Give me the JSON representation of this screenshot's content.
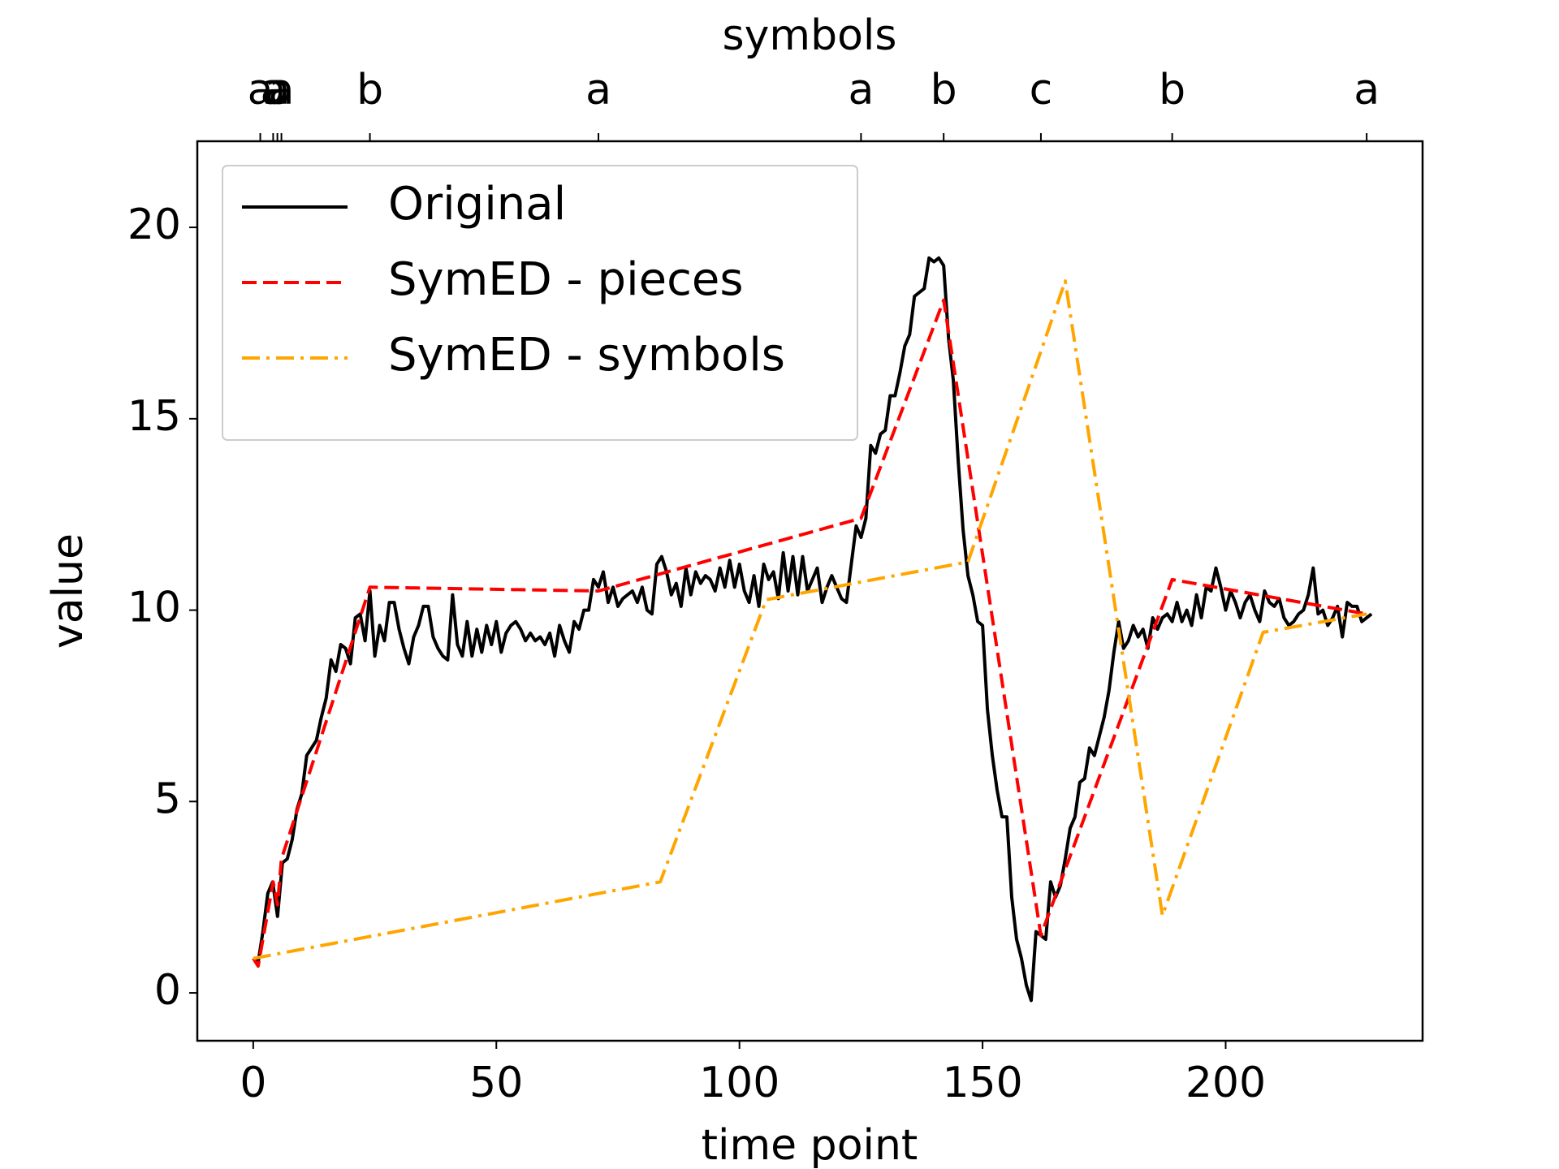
{
  "chart_data": {
    "type": "line",
    "xlabel": "time point",
    "ylabel": "value",
    "x2label": "symbols",
    "xlim": [
      -11.5,
      240.5
    ],
    "ylim": [
      -1.25,
      22.25
    ],
    "xticks": [
      0,
      50,
      100,
      150,
      200
    ],
    "yticks": [
      0,
      5,
      10,
      15,
      20
    ],
    "x2ticks": [
      {
        "value": 1.45,
        "label": "a"
      },
      {
        "value": 4.1,
        "label": "a"
      },
      {
        "value": 4.97,
        "label": "a"
      },
      {
        "value": 5.8,
        "label": "a"
      },
      {
        "value": 24,
        "label": "b"
      },
      {
        "value": 71,
        "label": "a"
      },
      {
        "value": 125,
        "label": "a"
      },
      {
        "value": 142,
        "label": "b"
      },
      {
        "value": 162,
        "label": "c"
      },
      {
        "value": 189,
        "label": "b"
      },
      {
        "value": 229,
        "label": "a"
      }
    ],
    "grid": false,
    "legend": "upper left",
    "series": [
      {
        "name": "Original",
        "color": "#000000",
        "linestyle": "solid",
        "x": [
          0,
          1,
          2,
          3,
          4,
          5,
          6,
          7,
          8,
          9,
          10,
          11,
          12,
          13,
          14,
          15,
          16,
          17,
          18,
          19,
          20,
          21,
          22,
          23,
          24,
          25,
          26,
          27,
          28,
          29,
          30,
          31,
          32,
          33,
          34,
          35,
          36,
          37,
          38,
          39,
          40,
          41,
          42,
          43,
          44,
          45,
          46,
          47,
          48,
          49,
          50,
          51,
          52,
          53,
          54,
          55,
          56,
          57,
          58,
          59,
          60,
          61,
          62,
          63,
          64,
          65,
          66,
          67,
          68,
          69,
          70,
          71,
          72,
          73,
          74,
          75,
          76,
          77,
          78,
          79,
          80,
          81,
          82,
          83,
          84,
          85,
          86,
          87,
          88,
          89,
          90,
          91,
          92,
          93,
          94,
          95,
          96,
          97,
          98,
          99,
          100,
          101,
          102,
          103,
          104,
          105,
          106,
          107,
          108,
          109,
          110,
          111,
          112,
          113,
          114,
          115,
          116,
          117,
          118,
          119,
          120,
          121,
          122,
          123,
          124,
          125,
          126,
          127,
          128,
          129,
          130,
          131,
          132,
          133,
          134,
          135,
          136,
          137,
          138,
          139,
          140,
          141,
          142,
          143,
          144,
          145,
          146,
          147,
          148,
          149,
          150,
          151,
          152,
          153,
          154,
          155,
          156,
          157,
          158,
          159,
          160,
          161,
          162,
          163,
          164,
          165,
          166,
          167,
          168,
          169,
          170,
          171,
          172,
          173,
          174,
          175,
          176,
          177,
          178,
          179,
          180,
          181,
          182,
          183,
          184,
          185,
          186,
          187,
          188,
          189,
          190,
          191,
          192,
          193,
          194,
          195,
          196,
          197,
          198,
          199,
          200,
          201,
          202,
          203,
          204,
          205,
          206,
          207,
          208,
          209,
          210,
          211,
          212,
          213,
          214,
          215,
          216,
          217,
          218,
          219,
          220,
          221,
          222,
          223,
          224,
          225,
          226,
          227,
          228,
          229,
          230
        ],
        "values": [
          0.9,
          0.8,
          1.6,
          2.6,
          2.9,
          2.0,
          3.4,
          3.5,
          4.0,
          4.8,
          5.2,
          6.2,
          6.4,
          6.6,
          7.2,
          7.7,
          8.7,
          8.4,
          9.1,
          9.0,
          8.6,
          9.8,
          9.9,
          9.2,
          10.5,
          8.8,
          9.6,
          9.2,
          10.2,
          10.2,
          9.5,
          9.0,
          8.6,
          9.3,
          9.6,
          10.1,
          10.1,
          9.3,
          9.0,
          8.8,
          8.7,
          10.4,
          9.1,
          8.8,
          9.7,
          8.8,
          9.5,
          8.9,
          9.6,
          9.1,
          9.7,
          8.9,
          9.4,
          9.6,
          9.7,
          9.5,
          9.2,
          9.4,
          9.2,
          9.3,
          9.1,
          9.4,
          8.8,
          9.6,
          9.2,
          8.9,
          9.7,
          9.5,
          10.0,
          10.0,
          10.8,
          10.6,
          11.0,
          10.2,
          10.6,
          10.1,
          10.3,
          10.4,
          10.5,
          10.2,
          10.6,
          10.0,
          9.9,
          11.2,
          11.4,
          11.0,
          10.4,
          10.7,
          10.1,
          11.1,
          10.4,
          11.0,
          10.7,
          10.9,
          10.8,
          10.5,
          11.1,
          10.6,
          11.3,
          10.6,
          11.2,
          10.5,
          10.2,
          10.9,
          10.1,
          11.2,
          10.8,
          11.0,
          10.3,
          11.5,
          10.5,
          11.4,
          10.4,
          11.4,
          10.5,
          10.8,
          11.1,
          10.2,
          10.6,
          10.9,
          10.6,
          10.3,
          10.2,
          11.2,
          12.2,
          11.9,
          12.4,
          14.3,
          14.1,
          14.6,
          14.7,
          15.6,
          15.6,
          16.2,
          16.9,
          17.2,
          18.2,
          18.3,
          18.4,
          19.2,
          19.1,
          19.2,
          19.0,
          17.1,
          16.0,
          13.9,
          12.1,
          10.9,
          10.4,
          9.7,
          9.6,
          7.4,
          6.2,
          5.3,
          4.6,
          4.6,
          2.5,
          1.4,
          0.9,
          0.2,
          -0.2,
          1.6,
          1.5,
          1.4,
          2.9,
          2.5,
          2.8,
          3.5,
          4.3,
          4.6,
          5.5,
          5.6,
          6.4,
          6.2,
          6.7,
          7.2,
          7.9,
          8.9,
          9.7,
          9.0,
          9.2,
          9.6,
          9.3,
          9.5,
          9.0,
          9.8,
          9.5,
          9.8,
          9.9,
          9.7,
          10.2,
          9.7,
          10.0,
          9.6,
          10.4,
          9.8,
          10.6,
          10.5,
          11.1,
          10.6,
          10.0,
          10.5,
          10.2,
          9.8,
          10.2,
          10.4,
          10.0,
          9.7,
          10.5,
          10.2,
          10.1,
          10.3,
          9.8,
          9.6,
          9.7,
          9.9,
          10.0,
          10.4,
          11.1,
          9.9,
          10.0,
          9.6,
          9.8,
          10.1,
          9.3,
          10.2,
          10.1,
          10.1,
          9.7,
          9.8,
          9.9
        ]
      },
      {
        "name": "SymED - pieces",
        "color": "#ff0000",
        "linestyle": "dashed",
        "x": [
          0,
          1,
          4.1,
          5,
          5.8,
          24,
          71,
          125,
          142,
          162,
          189,
          229
        ],
        "values": [
          0.9,
          0.7,
          2.9,
          2.3,
          3.5,
          10.6,
          10.5,
          12.4,
          18.1,
          1.5,
          10.8,
          9.9
        ]
      },
      {
        "name": "SymED - symbols",
        "color": "#ffa500",
        "linestyle": "dashdot",
        "x": [
          0,
          83.7,
          105.5,
          147,
          167,
          187,
          207.7,
          229
        ],
        "values": [
          0.9,
          2.9,
          10.27,
          11.26,
          18.6,
          2.02,
          9.42,
          9.9
        ]
      }
    ]
  }
}
